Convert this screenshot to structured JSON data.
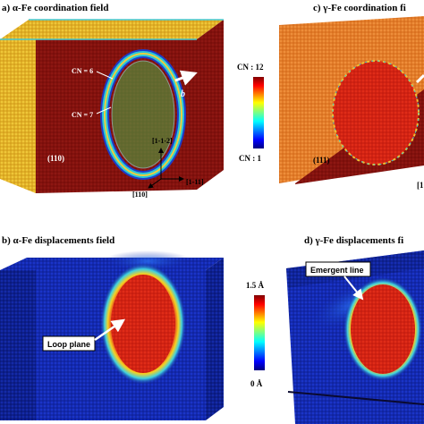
{
  "panels": {
    "a": {
      "title": "a) α-Fe coordination field",
      "plane": "(110)",
      "cn6": "CN = 6",
      "cn7": "CN = 7",
      "burgers": "b"
    },
    "b": {
      "title": "b) α-Fe displacements field",
      "callout": "Loop plane"
    },
    "c": {
      "title": "c) γ-Fe coordination fi",
      "plane": "(111)",
      "edge": "[1"
    },
    "d": {
      "title": "d) γ-Fe displacements fi",
      "callout": "Emergent line"
    }
  },
  "axes": {
    "top": "[1-1-2]",
    "right": "[1-11]",
    "left": "[110]"
  },
  "colorbar_cn": {
    "max": "CN : 12",
    "min": "CN : 1"
  },
  "colorbar_disp": {
    "max": "1.5 Å",
    "min": "0 Å"
  },
  "colors": {
    "dark_red": "#7e0f0a",
    "orange": "#e07a2a",
    "yellow": "#e8c02a",
    "blue": "#1428c8",
    "navy": "#0c1670"
  }
}
